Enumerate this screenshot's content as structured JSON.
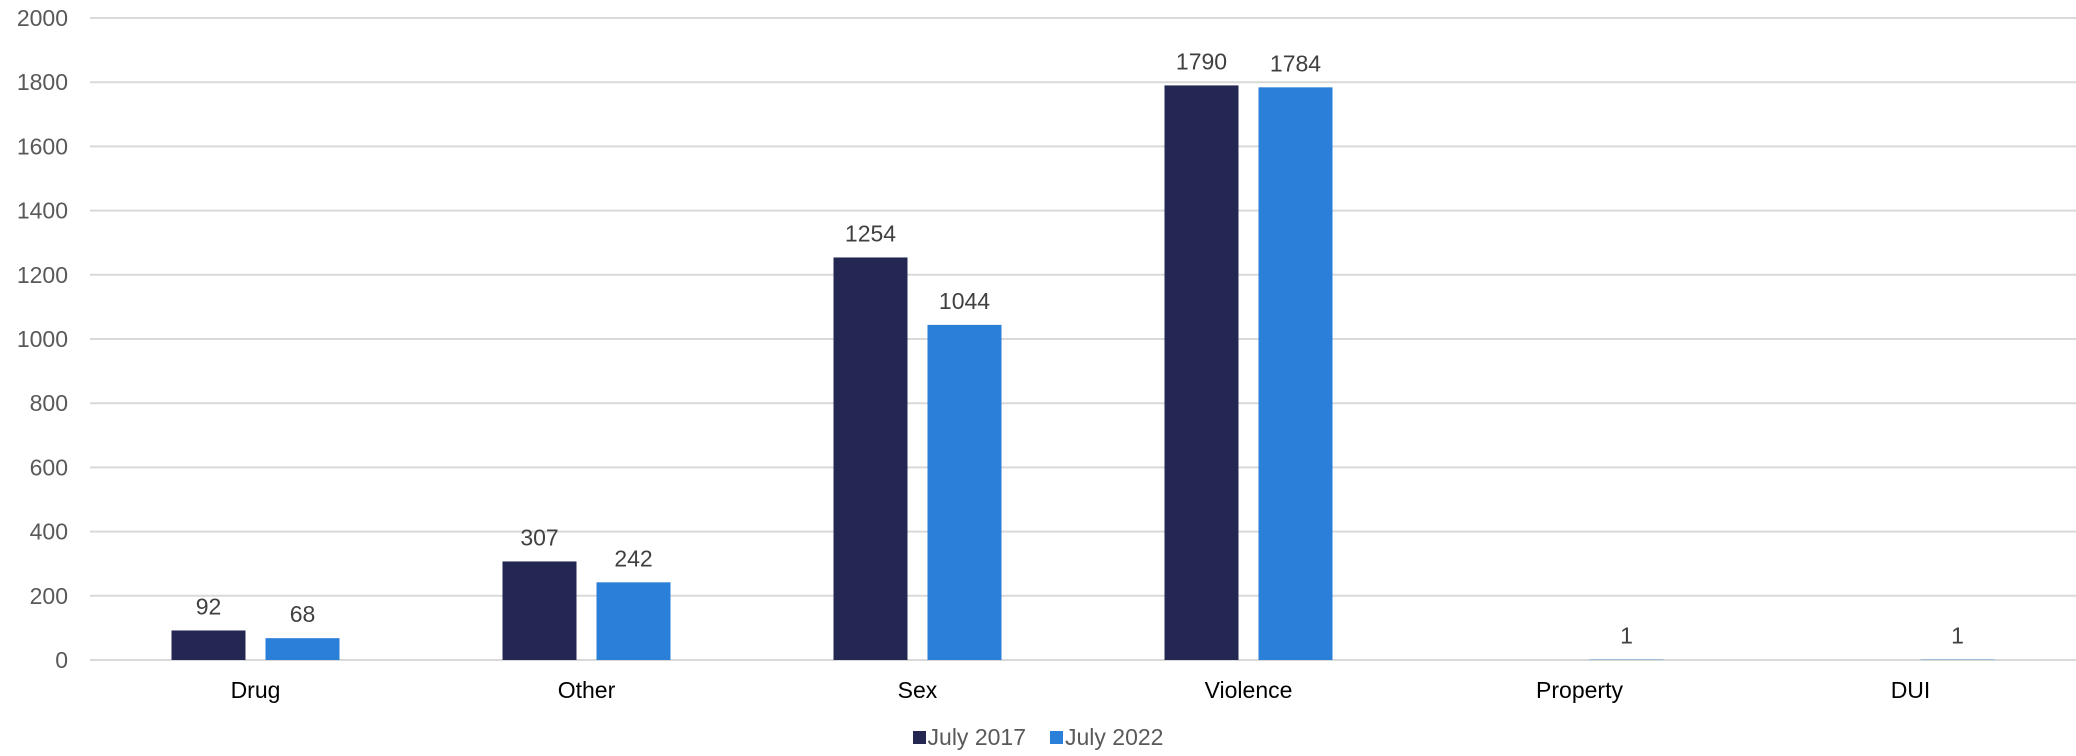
{
  "chart_data": {
    "type": "bar",
    "categories": [
      "Drug",
      "Other",
      "Sex",
      "Violence",
      "Property",
      "DUI"
    ],
    "series": [
      {
        "name": "July 2017",
        "values": [
          92,
          307,
          1254,
          1790,
          null,
          null
        ],
        "color": "#252753"
      },
      {
        "name": "July 2022",
        "values": [
          68,
          242,
          1044,
          1784,
          1,
          1
        ],
        "color": "#2a7fd8"
      }
    ],
    "ylim": [
      0,
      2000
    ],
    "yticks": [
      0,
      200,
      400,
      600,
      800,
      1000,
      1200,
      1400,
      1600,
      1800,
      2000
    ],
    "grid": true,
    "legend_position": "bottom-center",
    "title": "",
    "xlabel": "",
    "ylabel": ""
  }
}
